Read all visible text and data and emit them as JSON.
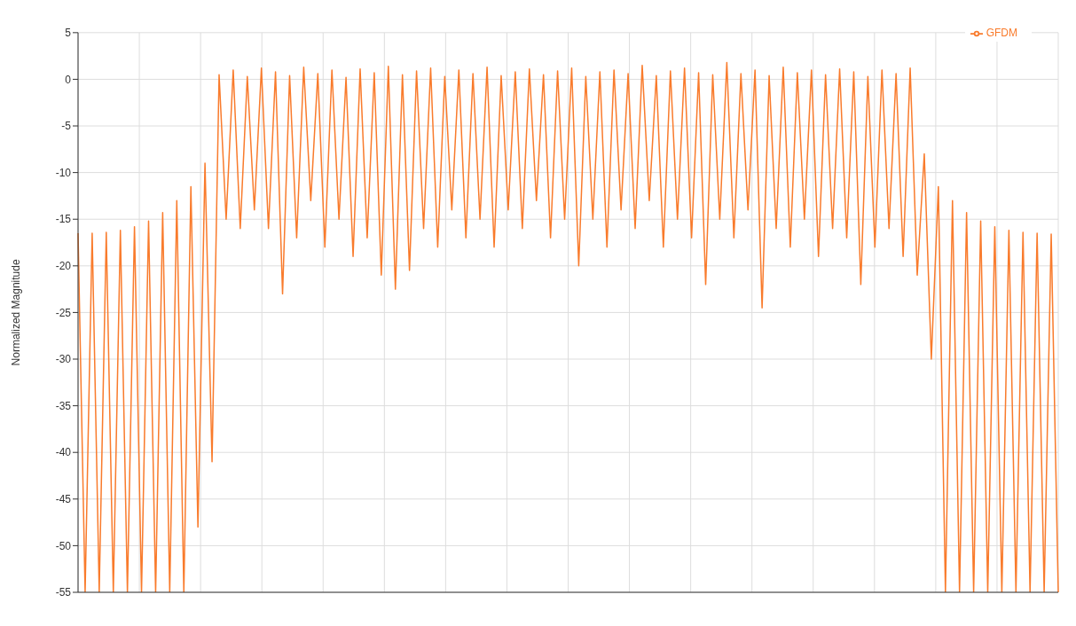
{
  "chart_data": {
    "type": "line",
    "ylabel": "Normalized Magnitude",
    "categories": [
      null,
      null,
      null,
      null,
      null,
      null,
      null,
      null,
      null,
      null,
      null,
      null,
      null,
      null,
      null,
      null,
      null,
      null,
      null,
      null,
      null,
      null,
      null,
      null,
      null,
      null,
      null,
      null,
      null,
      null,
      null,
      null,
      null,
      null,
      null,
      null,
      null,
      null,
      null,
      null,
      null,
      null,
      null,
      null,
      null,
      null,
      null,
      null,
      null,
      null,
      null,
      null,
      null,
      null,
      null,
      null,
      null,
      null,
      null,
      null,
      null,
      null,
      null,
      null,
      null,
      null,
      null,
      null,
      null,
      null,
      null,
      null,
      null,
      null,
      null,
      null,
      null,
      null,
      null,
      null,
      null,
      null,
      null,
      null,
      null,
      null,
      null,
      null,
      null,
      null,
      null,
      null,
      null,
      null,
      null,
      null,
      null,
      null,
      null,
      null,
      null,
      null,
      null,
      null,
      null,
      null,
      null,
      null,
      null,
      null,
      null,
      null,
      null,
      null,
      null,
      null,
      null,
      null,
      null,
      null,
      null,
      null,
      null,
      null,
      null,
      null,
      null,
      null,
      null,
      null,
      null,
      null,
      null,
      null,
      null,
      null,
      null,
      null,
      null,
      null
    ],
    "series": [
      {
        "name": "GFDM",
        "color": "#f97b2c",
        "values": [
          -16.5,
          -55,
          -16.5,
          -55,
          -16.4,
          -55,
          -16.2,
          -55,
          -15.8,
          -55,
          -15.2,
          -55,
          -14.3,
          -55,
          -13,
          -55,
          -11.5,
          -48,
          -9,
          -41,
          0.5,
          -15,
          1,
          -16,
          0.3,
          -14,
          1.2,
          -16,
          0.8,
          -23,
          0.4,
          -17,
          1.3,
          -13,
          0.6,
          -18,
          1,
          -15,
          0.2,
          -19,
          1.1,
          -17,
          0.7,
          -21,
          1.4,
          -22.5,
          0.5,
          -20.5,
          0.9,
          -16,
          1.2,
          -18,
          0.3,
          -14,
          1,
          -17,
          0.6,
          -15,
          1.3,
          -18,
          0.4,
          -14,
          0.8,
          -16,
          1.1,
          -13,
          0.5,
          -17,
          0.9,
          -15,
          1.2,
          -20,
          0.3,
          -15,
          0.8,
          -18,
          1,
          -14,
          0.6,
          -16,
          1.5,
          -13,
          0.4,
          -18,
          0.9,
          -15,
          1.2,
          -17,
          0.7,
          -22,
          0.5,
          -15,
          1.8,
          -17,
          0.6,
          -14,
          1,
          -24.5,
          0.4,
          -16,
          1.3,
          -18,
          0.7,
          -15,
          1,
          -19,
          0.5,
          -16,
          1.1,
          -17,
          0.8,
          -22,
          0.3,
          -18,
          1,
          -16,
          0.6,
          -19,
          1.2,
          -21,
          -8,
          -30,
          -11.5,
          -55,
          -13,
          -55,
          -14.3,
          -55,
          -15.2,
          -55,
          -15.8,
          -55,
          -16.2,
          -55,
          -16.4,
          -55,
          -16.5,
          -55,
          -16.6,
          -55
        ]
      }
    ],
    "ylim": [
      -55,
      5
    ],
    "yticks": [
      -55,
      -50,
      -45,
      -40,
      -35,
      -30,
      -25,
      -20,
      -15,
      -10,
      -5,
      0,
      5
    ],
    "grid": true,
    "legend": "top right",
    "line_style": "solid",
    "marker": "none",
    "tick_labels": "y"
  }
}
